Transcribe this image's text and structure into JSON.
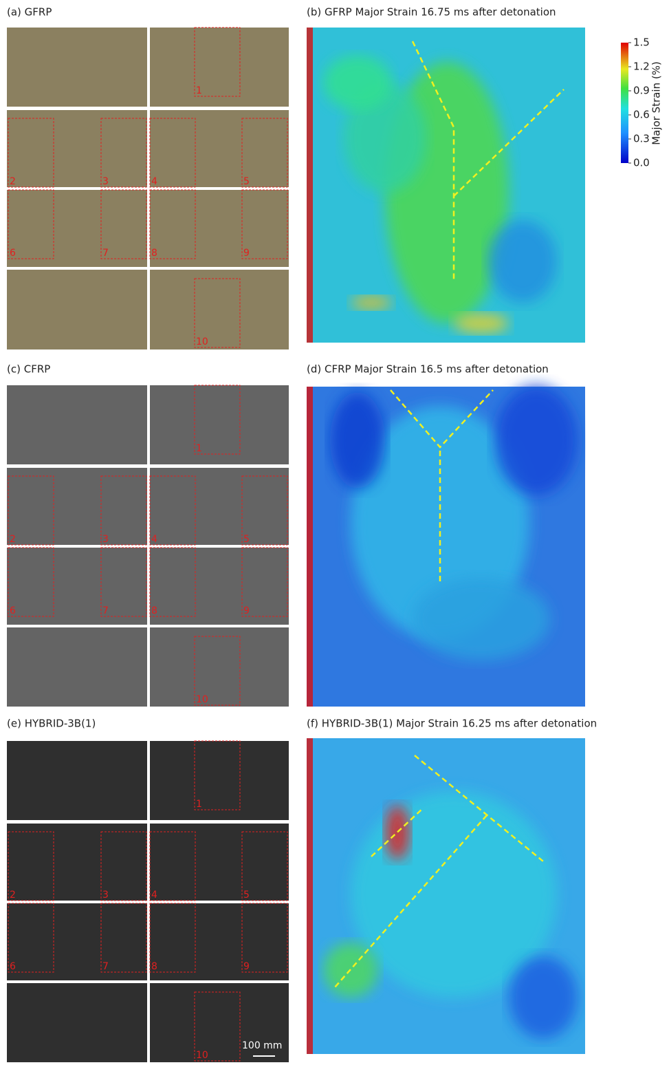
{
  "panels": [
    {
      "label": "(a) GFRP",
      "regions": [
        "1",
        "2",
        "3",
        "4",
        "5",
        "6",
        "7",
        "8",
        "9",
        "10"
      ]
    },
    {
      "label": "(b) GFRP Major Strain 16.75 ms after detonation"
    },
    {
      "label": "(c) CFRP",
      "regions": [
        "1",
        "2",
        "3",
        "4",
        "5",
        "6",
        "7",
        "8",
        "9",
        "10"
      ]
    },
    {
      "label": "(d) CFRP Major Strain 16.5 ms after detonation"
    },
    {
      "label": "(e) HYBRID-3B(1)",
      "regions": [
        "1",
        "2",
        "3",
        "4",
        "5",
        "6",
        "7",
        "8",
        "9",
        "10"
      ],
      "scale_bar": "100 mm"
    },
    {
      "label": "(f) HYBRID-3B(1) Major Strain 16.25 ms after detonation"
    }
  ],
  "colorbar": {
    "label": "Major Strain (%)",
    "lim": [
      0,
      1.5
    ],
    "ticks": [
      {
        "value": 0,
        "label": "0.0"
      },
      0.3,
      0.6,
      0.9,
      1.2,
      1.5
    ]
  }
}
